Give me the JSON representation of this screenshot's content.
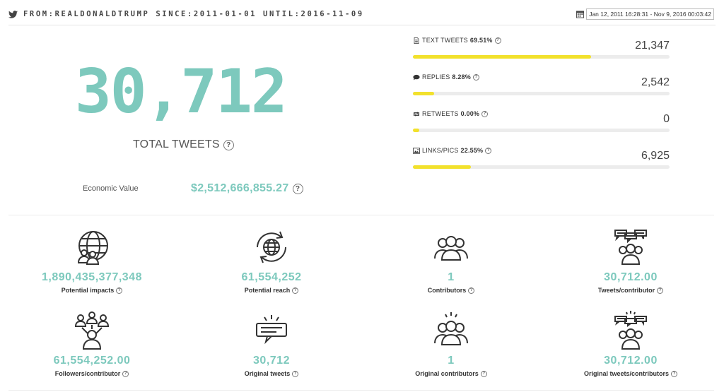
{
  "header": {
    "query": "FROM:REALDONALDTRUMP SINCE:2011-01-01 UNTIL:2016-11-09",
    "date_range": "Jan 12, 2011 16:28:31 - Nov 9, 2016 00:03:42"
  },
  "summary": {
    "total_tweets": "30,712",
    "total_label": "TOTAL TWEETS",
    "economic_label": "Economic Value",
    "economic_value": "$2,512,666,855.27"
  },
  "breakdown": [
    {
      "label": "TEXT TWEETS",
      "percent": "69.51%",
      "count": "21,347",
      "fraction": 0.6951,
      "icon": "document-icon"
    },
    {
      "label": "REPLIES",
      "percent": "8.28%",
      "count": "2,542",
      "fraction": 0.0828,
      "icon": "chat-icon"
    },
    {
      "label": "RETWEETS",
      "percent": "0.00%",
      "count": "0",
      "fraction": 0.0,
      "icon": "retweet-icon"
    },
    {
      "label": "LINKS/PICS",
      "percent": "22.55%",
      "count": "6,925",
      "fraction": 0.2255,
      "icon": "image-icon"
    }
  ],
  "stats": [
    {
      "value": "1,890,435,377,348",
      "caption": "Potential impacts",
      "icon": "globe-people-icon"
    },
    {
      "value": "61,554,252",
      "caption": "Potential reach",
      "icon": "globe-refresh-icon"
    },
    {
      "value": "1",
      "caption": "Contributors",
      "icon": "group-icon"
    },
    {
      "value": "30,712.00",
      "caption": "Tweets/contributor",
      "icon": "group-chat-icon"
    },
    {
      "value": "61,554,252.00",
      "caption": "Followers/contributor",
      "icon": "network-people-icon"
    },
    {
      "value": "30,712",
      "caption": "Original tweets",
      "icon": "speech-lines-icon"
    },
    {
      "value": "1",
      "caption": "Original contributors",
      "icon": "group-spark-icon"
    },
    {
      "value": "30,712.00",
      "caption": "Original tweets/contributors",
      "icon": "group-chat-spark-icon"
    }
  ],
  "colors": {
    "accent": "#7dc9bd",
    "bar": "#f2e12c",
    "track": "#ececec"
  }
}
